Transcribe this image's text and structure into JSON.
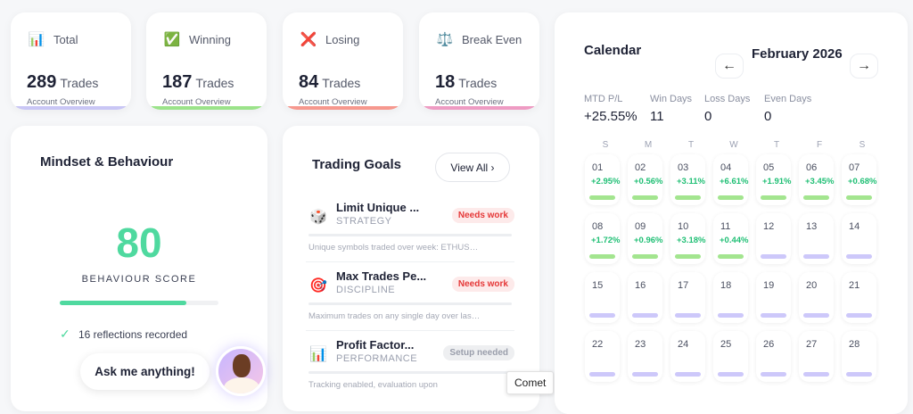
{
  "stats": [
    {
      "label": "Total",
      "count": "289",
      "unit": "Trades",
      "sub": "Account Overview",
      "icon": "bar-chart-icon",
      "color": "#c9c6f5"
    },
    {
      "label": "Winning",
      "count": "187",
      "unit": "Trades",
      "sub": "Account Overview",
      "icon": "check-box-icon",
      "color": "#9be38a"
    },
    {
      "label": "Losing",
      "count": "84",
      "unit": "Trades",
      "sub": "Account Overview",
      "icon": "cross-icon",
      "color": "#f6988e"
    },
    {
      "label": "Break Even",
      "count": "18",
      "unit": "Trades",
      "sub": "Account Overview",
      "icon": "scales-icon",
      "color": "#ee9bc3"
    }
  ],
  "mindset": {
    "title": "Mindset & Behaviour",
    "score": "80",
    "score_label": "BEHAVIOUR SCORE",
    "progress": 0.8,
    "reflections": "16 reflections recorded"
  },
  "goals": {
    "title": "Trading Goals",
    "view_all": "View All ›",
    "items": [
      {
        "name": "Limit Unique ...",
        "category": "STRATEGY",
        "status": "Needs work",
        "desc": "Unique symbols traded over week: ETHUS…",
        "icon": "dice-icon"
      },
      {
        "name": "Max Trades Pe...",
        "category": "DISCIPLINE",
        "status": "Needs work",
        "desc": "Maximum trades on any single day over las…",
        "icon": "target-icon"
      },
      {
        "name": "Profit Factor...",
        "category": "PERFORMANCE",
        "status": "Setup needed",
        "desc": "Tracking enabled, evaluation upon",
        "icon": "bar-chart-icon"
      }
    ]
  },
  "tooltip": "Comet",
  "calendar": {
    "title": "Calendar",
    "month": "February 2026",
    "prev": "←",
    "next": "→",
    "metrics": [
      {
        "label": "MTD P/L",
        "value": "+25.55%"
      },
      {
        "label": "Win Days",
        "value": "11"
      },
      {
        "label": "Loss Days",
        "value": "0"
      },
      {
        "label": "Even Days",
        "value": "0"
      }
    ],
    "weekdays": [
      "S",
      "M",
      "T",
      "W",
      "T",
      "F",
      "S"
    ],
    "days": [
      {
        "d": "01",
        "p": "+2.95%"
      },
      {
        "d": "02",
        "p": "+0.56%"
      },
      {
        "d": "03",
        "p": "+3.11%"
      },
      {
        "d": "04",
        "p": "+6.61%"
      },
      {
        "d": "05",
        "p": "+1.91%"
      },
      {
        "d": "06",
        "p": "+3.45%"
      },
      {
        "d": "07",
        "p": "+0.68%"
      },
      {
        "d": "08",
        "p": "+1.72%"
      },
      {
        "d": "09",
        "p": "+0.96%"
      },
      {
        "d": "10",
        "p": "+3.18%"
      },
      {
        "d": "11",
        "p": "+0.44%"
      },
      {
        "d": "12",
        "p": ""
      },
      {
        "d": "13",
        "p": ""
      },
      {
        "d": "14",
        "p": ""
      },
      {
        "d": "15",
        "p": ""
      },
      {
        "d": "16",
        "p": ""
      },
      {
        "d": "17",
        "p": ""
      },
      {
        "d": "18",
        "p": ""
      },
      {
        "d": "19",
        "p": ""
      },
      {
        "d": "20",
        "p": ""
      },
      {
        "d": "21",
        "p": ""
      },
      {
        "d": "22",
        "p": ""
      },
      {
        "d": "23",
        "p": ""
      },
      {
        "d": "24",
        "p": ""
      },
      {
        "d": "25",
        "p": ""
      },
      {
        "d": "26",
        "p": ""
      },
      {
        "d": "27",
        "p": ""
      },
      {
        "d": "28",
        "p": ""
      }
    ],
    "win_color": "#a3e58f",
    "empty_color": "#cdc8fa"
  },
  "assistant": {
    "prompt": "Ask me anything!"
  }
}
